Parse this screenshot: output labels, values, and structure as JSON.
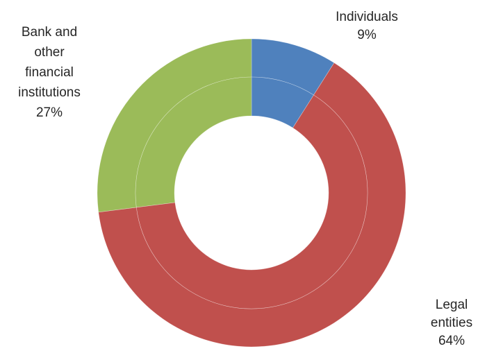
{
  "chart_data": {
    "type": "pie",
    "variant": "doughnut",
    "rings": 2,
    "categories": [
      "Individuals",
      "Legal entities",
      "Bank and other financial institutions"
    ],
    "values": [
      9,
      64,
      27
    ],
    "unit": "%",
    "colors": [
      "#4f81bd",
      "#c0504d",
      "#9bbb59"
    ],
    "labels": [
      {
        "category": "Individuals",
        "lines": [
          "Individuals",
          "9%"
        ],
        "placement": "top-right"
      },
      {
        "category": "Legal entities",
        "lines": [
          "Legal",
          "entities",
          "64%"
        ],
        "placement": "bottom-right"
      },
      {
        "category": "Bank and other financial institutions",
        "lines": [
          "Bank and",
          "other",
          "financial",
          "institutions",
          "27%"
        ],
        "placement": "top-left"
      }
    ],
    "title": "",
    "legend": "none"
  }
}
